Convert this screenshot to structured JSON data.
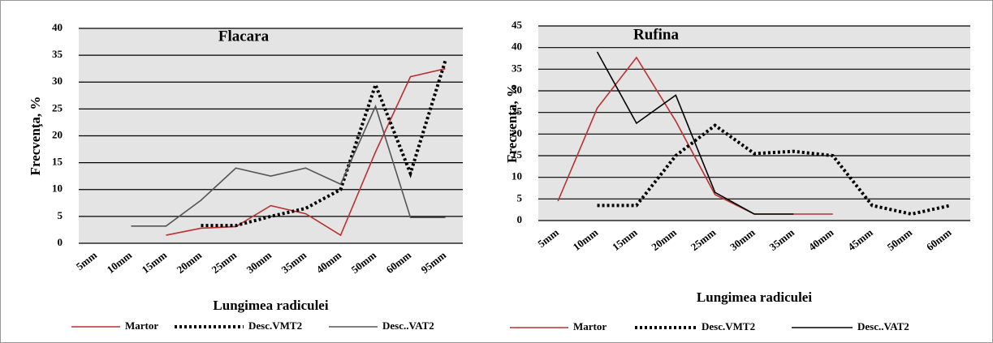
{
  "chart_data": [
    {
      "type": "line",
      "title": "Flacara",
      "y_label": "Frecvenţa, %",
      "x_label": "Lungimea radiculei",
      "categories": [
        "5mm",
        "10mm",
        "15mm",
        "20mm",
        "25mm",
        "30mm",
        "35mm",
        "40mm",
        "50mm",
        "60mm",
        "95mm"
      ],
      "ylim": [
        0,
        40
      ],
      "yticks": [
        0,
        5,
        10,
        15,
        20,
        25,
        30,
        35,
        40
      ],
      "grid": true,
      "series": [
        {
          "name": "Martor",
          "color": "#b83232",
          "linestyle": "solid",
          "values": [
            null,
            null,
            1.5,
            2.8,
            3.1,
            7,
            5.5,
            1.5,
            17,
            31,
            32.5
          ]
        },
        {
          "name": "Desc.VMT2",
          "color": "#000000",
          "linestyle": "dotted",
          "values": [
            null,
            null,
            null,
            3.3,
            3.3,
            5,
            6.5,
            10,
            29.5,
            13,
            34
          ]
        },
        {
          "name": "Desc..VAT2",
          "color": "#555555",
          "linestyle": "solid",
          "values": [
            null,
            3.2,
            3.2,
            8,
            14,
            12.5,
            14,
            11,
            25.5,
            4.8,
            4.8
          ]
        }
      ]
    },
    {
      "type": "line",
      "title": "Rufina",
      "y_label": "Frecvenţa, %",
      "x_label": "Lungimea radiculei",
      "categories": [
        "5mm",
        "10mm",
        "15mm",
        "20mm",
        "25mm",
        "30mm",
        "35mm",
        "40mm",
        "45mm",
        "50mm",
        "60mm"
      ],
      "ylim": [
        0,
        45
      ],
      "yticks": [
        0,
        5,
        10,
        15,
        20,
        25,
        30,
        35,
        40,
        45
      ],
      "grid": true,
      "series": [
        {
          "name": "Martor",
          "color": "#b83232",
          "linestyle": "solid",
          "values": [
            4.5,
            26,
            37.7,
            23,
            6,
            1.5,
            1.5,
            1.5,
            null,
            null,
            null
          ]
        },
        {
          "name": "Desc.VMT2",
          "color": "#000000",
          "linestyle": "dotted",
          "values": [
            null,
            3.5,
            3.5,
            15,
            22,
            15.5,
            16,
            15,
            3.5,
            1.5,
            3.5
          ]
        },
        {
          "name": "Desc..VAT2",
          "color": "#000000",
          "linestyle": "solid",
          "values": [
            null,
            39,
            22.5,
            29,
            6.5,
            1.5,
            1.5,
            null,
            null,
            null,
            null
          ]
        }
      ]
    }
  ]
}
